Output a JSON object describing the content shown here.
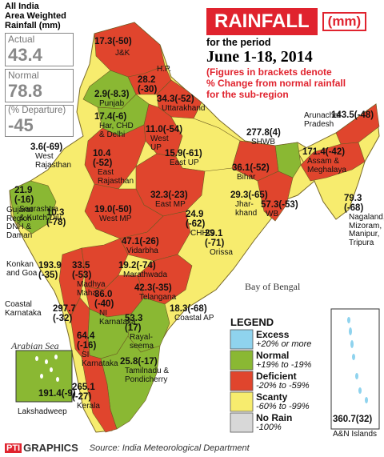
{
  "header": {
    "title": "RAINFALL",
    "unit": "(mm)",
    "subtitle_line1": "for the period",
    "period": "June 1-18, 2014",
    "note_lines": [
      "(Figures in brackets denote",
      "% Change from normal rainfall",
      "for the sub-region"
    ]
  },
  "all_india": {
    "title_lines": [
      "All India",
      "Area Weighted",
      "Rainfall (mm)"
    ],
    "actual_label": "Actual",
    "actual_value": "43.4",
    "normal_label": "Normal",
    "normal_value": "78.8",
    "departure_label": "(% Departure)",
    "departure_value": "-45"
  },
  "colors": {
    "excess": "#8fd3ee",
    "normal": "#8ab833",
    "deficient": "#e0452d",
    "scanty": "#f7ec6e",
    "no_rain": "#d8d8d8",
    "title_bg": "#e0232e",
    "sea": "#ffffff"
  },
  "sea_labels": {
    "bay": "Bay of Bengal",
    "arabian": "Arabian Sea"
  },
  "legend": {
    "title": "LEGEND",
    "items": [
      {
        "name": "Excess",
        "range": "+20% or more",
        "color": "#8fd3ee"
      },
      {
        "name": "Normal",
        "range": "+19% to -19%",
        "color": "#8ab833"
      },
      {
        "name": "Deficient",
        "range": "-20% to -59%",
        "color": "#e0452d"
      },
      {
        "name": "Scanty",
        "range": "-60% to -99%",
        "color": "#f7ec6e"
      },
      {
        "name": "No Rain",
        "range": "-100%",
        "color": "#d8d8d8"
      }
    ]
  },
  "subdivisions": [
    {
      "id": "jk",
      "value": "17.3(-50)",
      "label": "J&K",
      "category": "deficient"
    },
    {
      "id": "hp",
      "value": "28.2\n(-30)",
      "label": "H.P.",
      "category": "deficient"
    },
    {
      "id": "punjab",
      "value": "2.9(-8.3)",
      "label": "Punjab",
      "category": "normal"
    },
    {
      "id": "uttarakhand",
      "value": "34.3(-52)",
      "label": "Uttarakhand",
      "category": "deficient"
    },
    {
      "id": "haryana",
      "value": "17.4(-6)",
      "label": "Har, CHD\n& Delhi",
      "category": "normal"
    },
    {
      "id": "west_up",
      "value": "11.0(-54)",
      "label": "West\nUP",
      "category": "deficient"
    },
    {
      "id": "west_rajasthan",
      "value": "3.6(-69)",
      "label": "West\nRajasthan",
      "category": "scanty"
    },
    {
      "id": "east_rajasthan",
      "value": "10.4\n(-52)",
      "label": "East\nRajasthan",
      "category": "deficient"
    },
    {
      "id": "east_up",
      "value": "15.9(-61)",
      "label": "East UP",
      "category": "scanty"
    },
    {
      "id": "shwb",
      "value": "277.8(4)",
      "label": "SHWB",
      "category": "normal"
    },
    {
      "id": "arunachal",
      "value": "143.5(-48)",
      "label": "Arunachal\nPradesh",
      "category": "deficient"
    },
    {
      "id": "assam",
      "value": "171.4(-42)",
      "label": "Assam &\nMeghalaya",
      "category": "deficient"
    },
    {
      "id": "nmmt",
      "value": "79.3\n(-68)",
      "label": "Nagaland,\nMizoram,\nManipur,\nTripura",
      "category": "scanty"
    },
    {
      "id": "bihar",
      "value": "36.1(-52)",
      "label": "Bihar",
      "category": "deficient"
    },
    {
      "id": "jharkhand",
      "value": "29.3(-65)",
      "label": "Jhar-\nkhand",
      "category": "scanty"
    },
    {
      "id": "gwb",
      "value": "57.3(-53)",
      "label": "WB",
      "category": "deficient"
    },
    {
      "id": "saurashtra",
      "value": "21.9\n(-16)",
      "label": "Saurashtra\n& Kutch Diu",
      "category": "normal"
    },
    {
      "id": "east_mp",
      "value": "32.3(-23)",
      "label": "East MP",
      "category": "deficient"
    },
    {
      "id": "west_mp",
      "value": "19.0(-50)",
      "label": "West MP",
      "category": "deficient"
    },
    {
      "id": "gujarat",
      "value": "10.3\n(-78)",
      "label": "Gujarat\nRegion\nDNH &\nDaman",
      "category": "scanty"
    },
    {
      "id": "chhg",
      "value": "24.9\n(-62)",
      "label": "CHHG",
      "category": "scanty"
    },
    {
      "id": "orissa",
      "value": "29.1\n(-71)",
      "label": "Orissa",
      "category": "scanty"
    },
    {
      "id": "vidarbha",
      "value": "47.1(-26)",
      "label": "Vidarbha",
      "category": "deficient"
    },
    {
      "id": "konkan",
      "value": "193.9\n(-35)",
      "label": "Konkan\nand Goa",
      "category": "deficient"
    },
    {
      "id": "madhya_maha",
      "value": "33.5\n(-53)",
      "label": "Madhya\nMaha",
      "category": "deficient"
    },
    {
      "id": "marathwada",
      "value": "19.2(-74)",
      "label": "Marathwada",
      "category": "scanty"
    },
    {
      "id": "telangana",
      "value": "42.3(-35)",
      "label": "Telangana",
      "category": "deficient"
    },
    {
      "id": "ni_karnataka",
      "value": "36.0\n(-40)",
      "label": "NI\nKarnataka",
      "category": "deficient"
    },
    {
      "id": "coastal_ap",
      "value": "18.3(-68)",
      "label": "Coastal AP",
      "category": "scanty"
    },
    {
      "id": "coastal_karnataka",
      "value": "297.7\n(-32)",
      "label": "Coastal\nKarnataka",
      "category": "deficient"
    },
    {
      "id": "rayalseema",
      "value": "53.3\n(17)",
      "label": "Rayal-\nseema",
      "category": "normal"
    },
    {
      "id": "si_karnataka",
      "value": "64.4\n(-16)",
      "label": "SI\nKarnataka",
      "category": "normal"
    },
    {
      "id": "tamilnadu",
      "value": "25.8(-17)",
      "label": "Tamilnadu &\nPondicherry",
      "category": "normal"
    },
    {
      "id": "kerala",
      "value": "265.1\n(-27)",
      "label": "Kerala",
      "category": "deficient"
    },
    {
      "id": "lakshadweep",
      "value": "191.4(-9)",
      "label": "Lakshadweep",
      "category": "normal"
    },
    {
      "id": "andaman",
      "value": "360.7(32)",
      "label": "A&N Islands",
      "category": "excess"
    }
  ],
  "footer": {
    "logo_prefix": "PTI",
    "logo_text": "GRAPHICS",
    "source": "Source: India Meteorological Department"
  }
}
